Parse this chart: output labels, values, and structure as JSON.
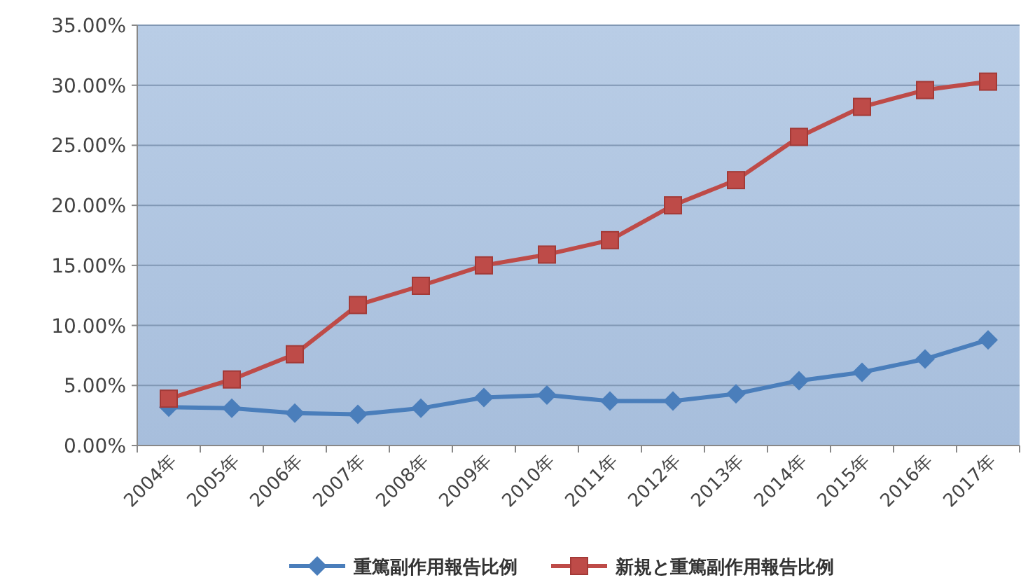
{
  "chart_data": {
    "type": "line",
    "categories": [
      "2004年",
      "2005年",
      "2006年",
      "2007年",
      "2008年",
      "2009年",
      "2010年",
      "2011年",
      "2012年",
      "2013年",
      "2014年",
      "2015年",
      "2016年",
      "2017年"
    ],
    "series": [
      {
        "name": "重篤副作用報告比例",
        "color": "#4a7ebb",
        "marker": "diamond",
        "values": [
          3.2,
          3.1,
          2.7,
          2.6,
          3.1,
          4.0,
          4.2,
          3.7,
          3.7,
          4.3,
          5.4,
          6.1,
          7.2,
          8.8
        ]
      },
      {
        "name": "新規と重篤副作用報告比例",
        "color": "#be4b48",
        "marker": "square",
        "values": [
          3.9,
          5.5,
          7.6,
          11.7,
          13.3,
          15.0,
          15.9,
          17.1,
          20.0,
          22.1,
          25.7,
          28.2,
          29.6,
          30.3
        ]
      }
    ],
    "ylim": [
      0,
      35
    ],
    "yticks": [
      {
        "value": 0,
        "label": "0.00%"
      },
      {
        "value": 5,
        "label": "5.00%"
      },
      {
        "value": 10,
        "label": "10.00%"
      },
      {
        "value": 15,
        "label": "15.00%"
      },
      {
        "value": 20,
        "label": "20.00%"
      },
      {
        "value": 25,
        "label": "25.00%"
      },
      {
        "value": 30,
        "label": "30.00%"
      },
      {
        "value": 35,
        "label": "35.00%"
      }
    ],
    "grid": "y",
    "legend": "bottom",
    "line_style": "solid"
  }
}
